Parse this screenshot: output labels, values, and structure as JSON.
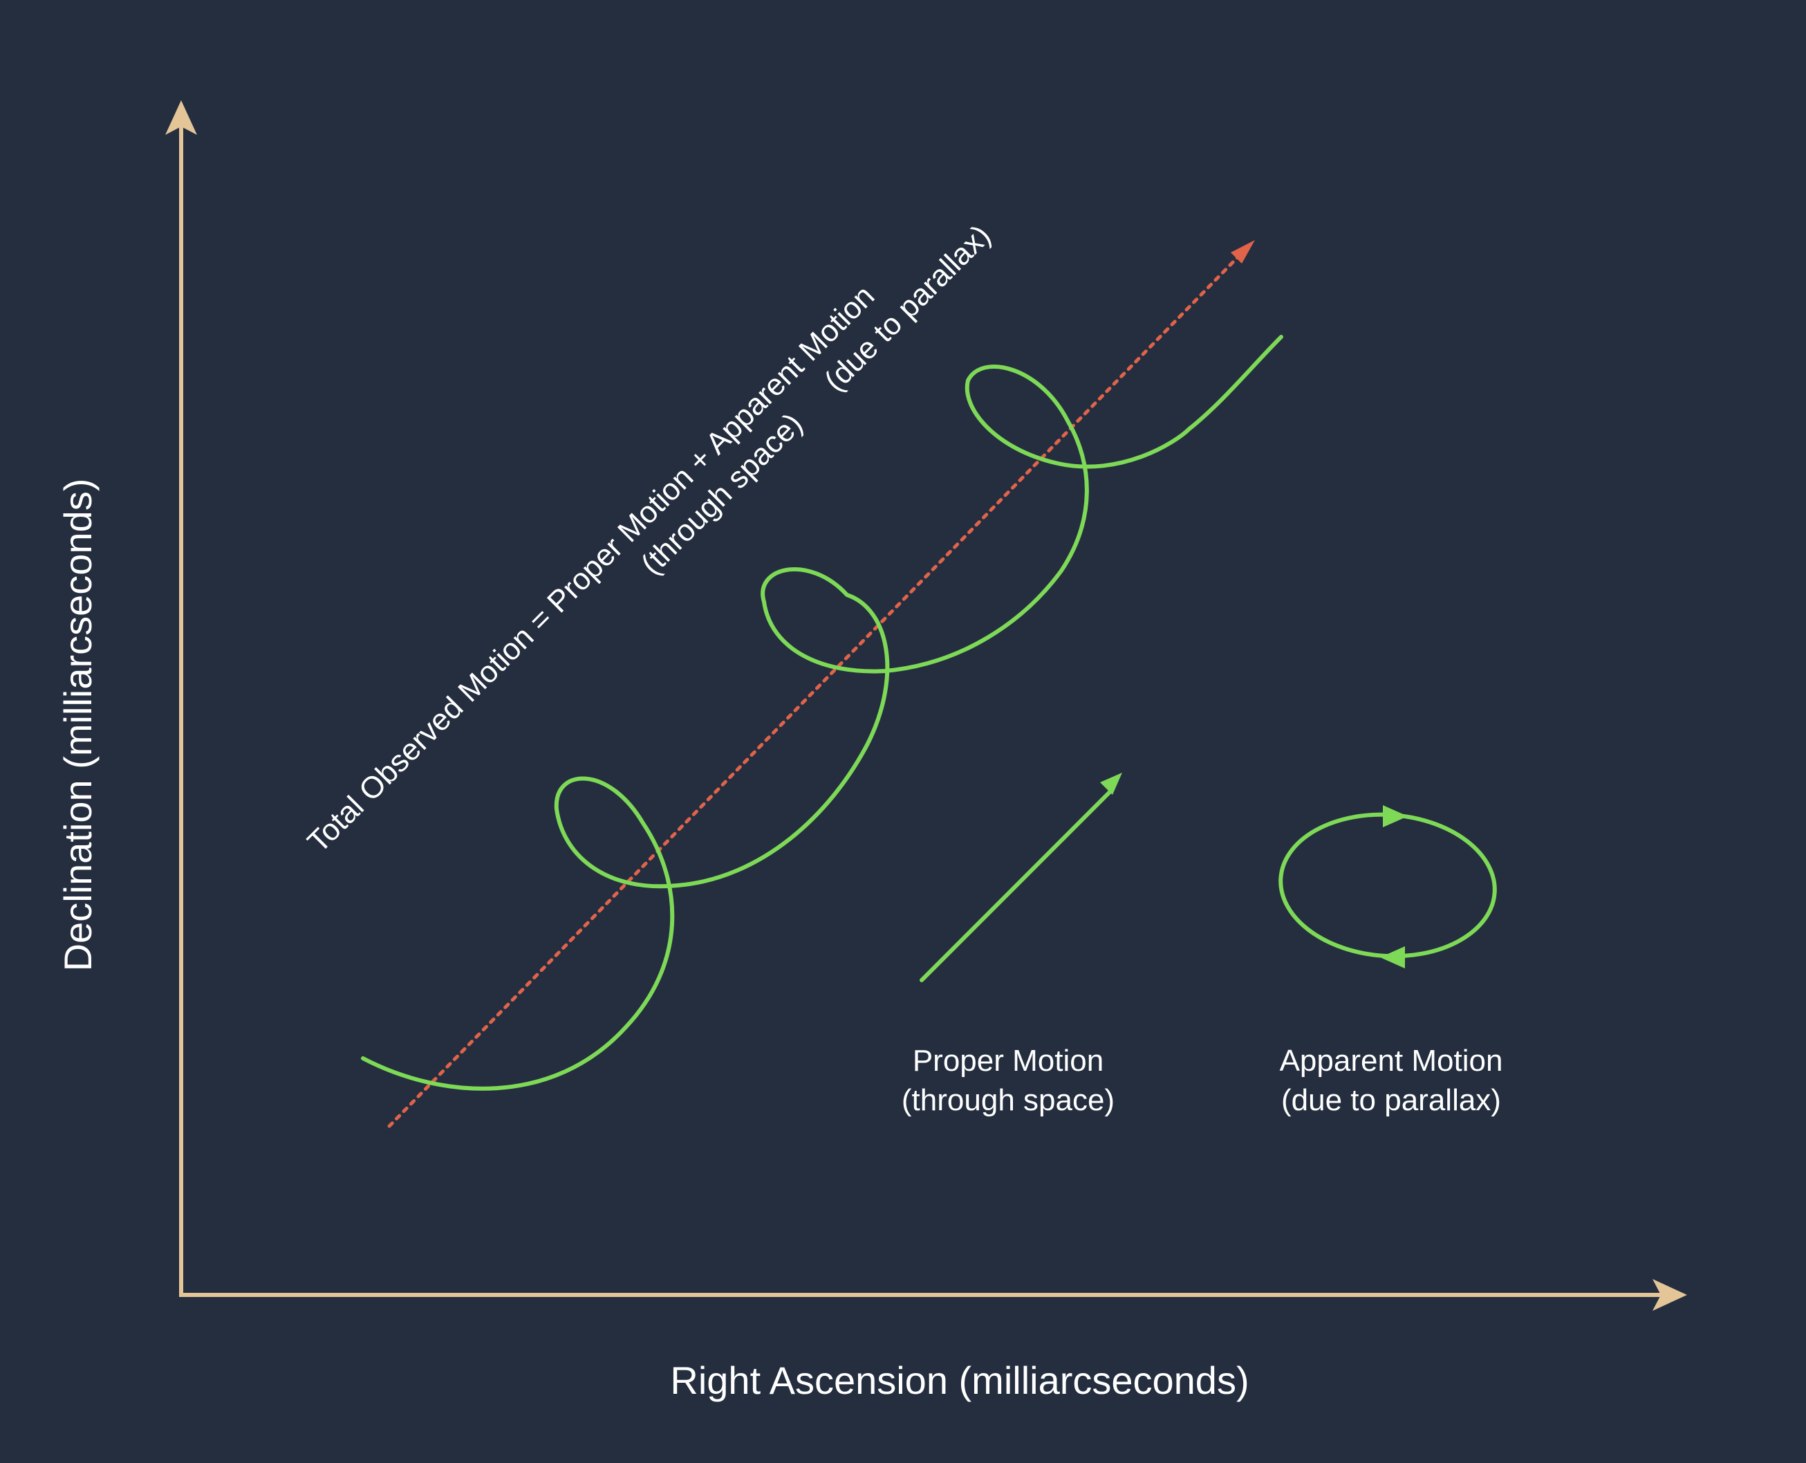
{
  "axes": {
    "x_label": "Right Ascension (milliarcseconds)",
    "y_label": "Declination (milliarcseconds)"
  },
  "annotation": {
    "line1": "Total Observed Motion = Proper Motion + Apparent Motion",
    "note_proper": "(through space)",
    "note_apparent": "(due to parallax)"
  },
  "legend": {
    "proper": {
      "line1": "Proper Motion",
      "line2": "(through space)"
    },
    "apparent": {
      "line1": "Apparent Motion",
      "line2": "(due to parallax)"
    }
  },
  "colors": {
    "background": "#242e3f",
    "axis": "#e3c597",
    "motion_path": "#7ed957",
    "trend_line": "#e0634a",
    "text": "#ffffff"
  }
}
